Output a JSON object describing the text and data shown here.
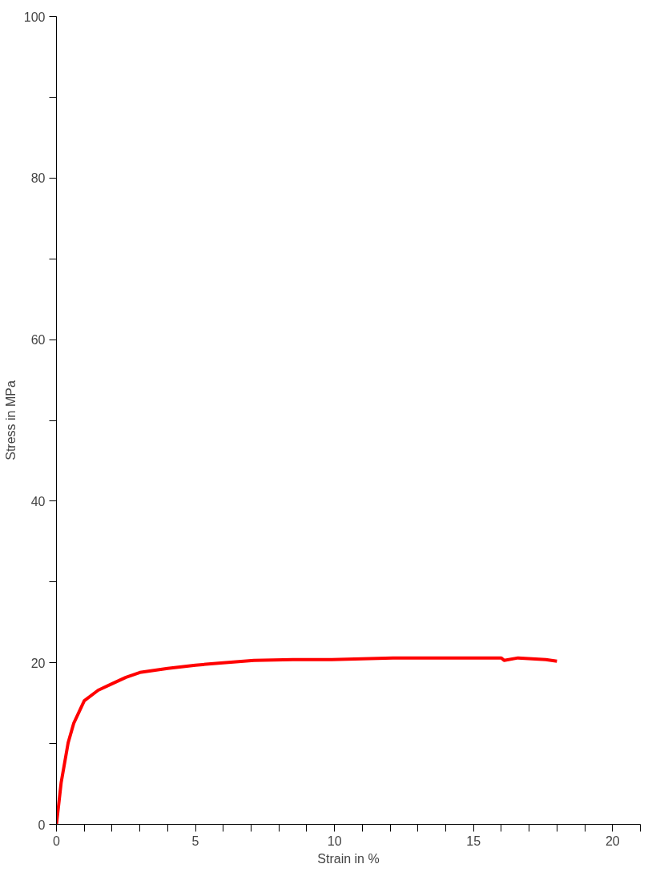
{
  "chart_data": {
    "type": "line",
    "xlabel": "Strain in %",
    "ylabel": "Stress in MPa",
    "xlim": [
      0,
      21
    ],
    "ylim": [
      0,
      100
    ],
    "xticks": [
      0,
      {
        "value": 1,
        "label": null
      },
      {
        "value": 2,
        "label": null
      },
      {
        "value": 3,
        "label": null
      },
      {
        "value": 4,
        "label": null
      },
      5,
      {
        "value": 6,
        "label": null
      },
      {
        "value": 7,
        "label": null
      },
      {
        "value": 8,
        "label": null
      },
      {
        "value": 9,
        "label": null
      },
      10,
      {
        "value": 11,
        "label": null
      },
      {
        "value": 12,
        "label": null
      },
      {
        "value": 13,
        "label": null
      },
      {
        "value": 14,
        "label": null
      },
      15,
      {
        "value": 16,
        "label": null
      },
      {
        "value": 17,
        "label": null
      },
      {
        "value": 18,
        "label": null
      },
      {
        "value": 19,
        "label": null
      },
      20,
      {
        "value": 21,
        "label": null
      }
    ],
    "yticks": [
      0,
      {
        "value": 10,
        "label": null
      },
      20,
      {
        "value": 30,
        "label": null
      },
      40,
      {
        "value": 50,
        "label": null
      },
      60,
      {
        "value": 70,
        "label": null
      },
      80,
      {
        "value": 90,
        "label": null
      },
      100
    ],
    "line_style": "solid",
    "series": [
      {
        "color": "#ff0000",
        "x": [
          0,
          0.17,
          0.42,
          0.62,
          1.0,
          1.5,
          2.0,
          2.5,
          3.0,
          4.0,
          5.0,
          6.0,
          7.1,
          8.5,
          9.9,
          12.1,
          14.0,
          16.0,
          16.1,
          16.6,
          17.6,
          18.0
        ],
        "values": [
          0,
          5.2,
          10.1,
          12.5,
          15.3,
          16.6,
          17.4,
          18.2,
          18.8,
          19.3,
          19.7,
          20.0,
          20.3,
          20.4,
          20.4,
          20.6,
          20.6,
          20.6,
          20.3,
          20.6,
          20.4,
          20.2
        ]
      }
    ]
  }
}
